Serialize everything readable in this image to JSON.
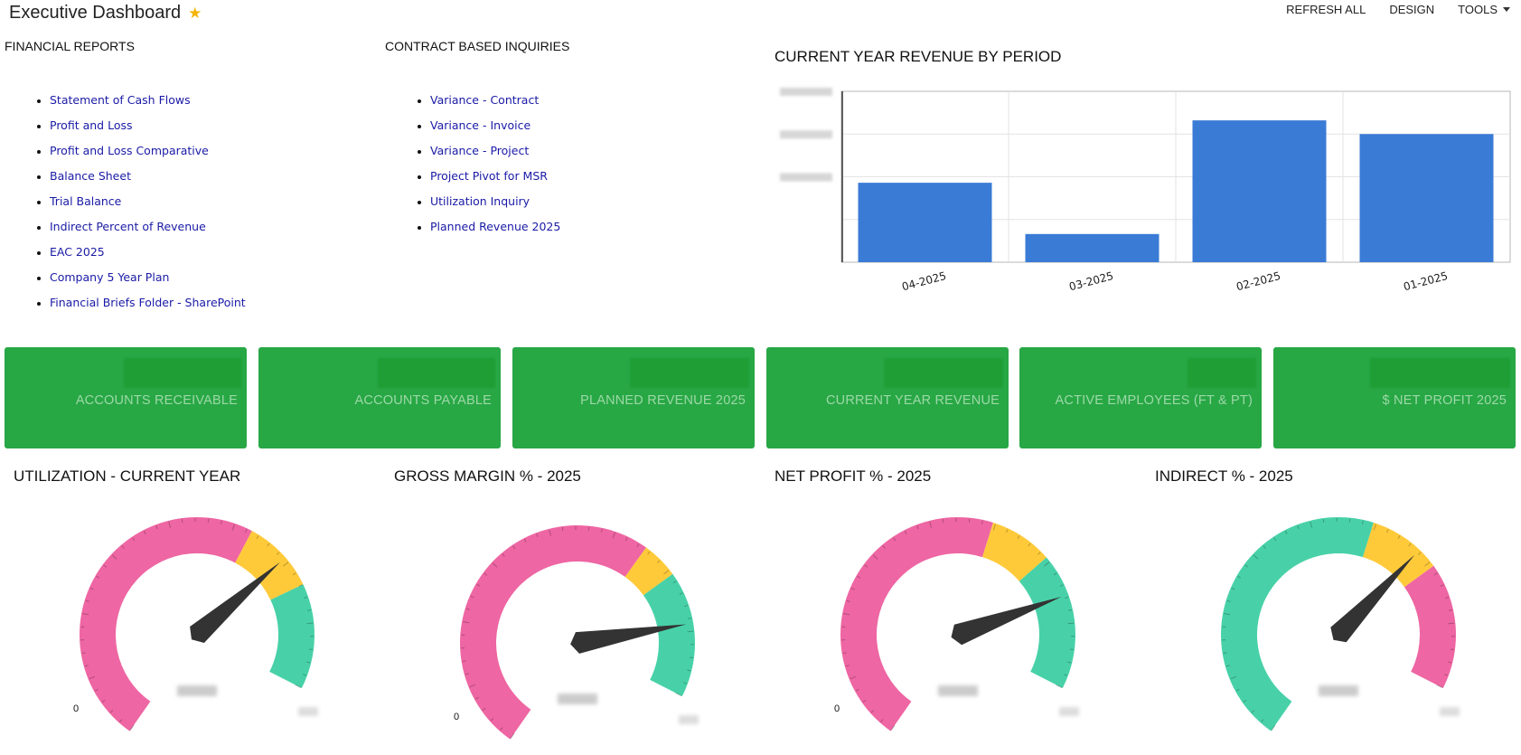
{
  "header": {
    "title": "Executive Dashboard",
    "actions": {
      "refresh": "REFRESH ALL",
      "design": "DESIGN",
      "tools": "TOOLS"
    }
  },
  "financial_reports": {
    "title": "FINANCIAL REPORTS",
    "links": [
      "Statement of Cash Flows",
      "Profit and Loss",
      "Profit and Loss Comparative",
      "Balance Sheet",
      "Trial Balance",
      "Indirect Percent of Revenue",
      "EAC 2025",
      "Company 5 Year Plan",
      "Financial Briefs Folder - SharePoint"
    ]
  },
  "contract_inquiries": {
    "title": "CONTRACT BASED INQUIRIES",
    "links": [
      "Variance - Contract",
      "Variance - Invoice",
      "Variance - Project",
      "Project Pivot for MSR",
      "Utilization Inquiry",
      "Planned Revenue 2025"
    ]
  },
  "chart_data": {
    "type": "bar",
    "title": "CURRENT YEAR REVENUE BY PERIOD",
    "categories": [
      "04-2025",
      "03-2025",
      "02-2025",
      "01-2025"
    ],
    "values": [
      0.465,
      0.165,
      0.83,
      0.75
    ],
    "ylim": [
      0,
      1
    ],
    "grid": true,
    "color": "#3a7bd5"
  },
  "kpis": [
    {
      "label": "ACCOUNTS RECEIVABLE"
    },
    {
      "label": "ACCOUNTS PAYABLE"
    },
    {
      "label": "PLANNED REVENUE 2025"
    },
    {
      "label": "CURRENT YEAR REVENUE"
    },
    {
      "label": "ACTIVE EMPLOYEES (FT & PT)"
    },
    {
      "label": "$ NET PROFIT 2025"
    }
  ],
  "gauges": [
    {
      "title": "UTILIZATION - CURRENT YEAR",
      "min_label": "0",
      "needle_fraction": 0.74,
      "bands": [
        [
          "#ee66a3",
          0.66
        ],
        [
          "#ffca3a",
          0.8
        ],
        [
          "#48d1a8",
          1.0
        ]
      ]
    },
    {
      "title": "GROSS MARGIN % - 2025",
      "min_label": "0",
      "needle_fraction": 0.86,
      "bands": [
        [
          "#ee66a3",
          0.69
        ],
        [
          "#ffca3a",
          0.76
        ],
        [
          "#48d1a8",
          1.0
        ]
      ]
    },
    {
      "title": "NET PROFIT % - 2025",
      "min_label": "0",
      "needle_fraction": 0.82,
      "bands": [
        [
          "#ee66a3",
          0.62
        ],
        [
          "#ffca3a",
          0.74
        ],
        [
          "#48d1a8",
          1.0
        ]
      ]
    },
    {
      "title": "INDIRECT % - 2025",
      "min_label": "",
      "needle_fraction": 0.72,
      "bands": [
        [
          "#48d1a8",
          0.62
        ],
        [
          "#ffca3a",
          0.76
        ],
        [
          "#ee66a3",
          1.0
        ]
      ]
    }
  ]
}
